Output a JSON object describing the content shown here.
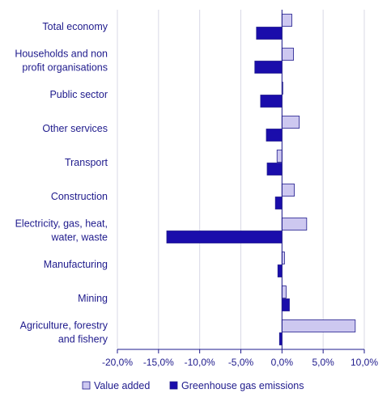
{
  "chart_data": {
    "type": "bar",
    "orientation": "horizontal",
    "categories": [
      "Total economy",
      "Households and non profit organisations",
      "Public sector",
      "Other services",
      "Transport",
      "Construction",
      "Electricity, gas, heat, water, waste",
      "Manufacturing",
      "Mining",
      "Agriculture, forestry and fishery"
    ],
    "category_lines": [
      [
        "Total economy"
      ],
      [
        "Households and non",
        "profit organisations"
      ],
      [
        "Public sector"
      ],
      [
        "Other services"
      ],
      [
        "Transport"
      ],
      [
        "Construction"
      ],
      [
        "Electricity, gas, heat,",
        "water, waste"
      ],
      [
        "Manufacturing"
      ],
      [
        "Mining"
      ],
      [
        "Agriculture, forestry",
        "and fishery"
      ]
    ],
    "series": [
      {
        "name": "Value added",
        "color": "#cdc8f0",
        "values": [
          1.2,
          1.4,
          0.1,
          2.1,
          -0.6,
          1.5,
          3.0,
          0.3,
          0.5,
          8.9
        ]
      },
      {
        "name": "Greenhouse gas emissions",
        "color": "#1a0dab",
        "values": [
          -3.1,
          -3.3,
          -2.6,
          -1.9,
          -1.8,
          -0.8,
          -14.0,
          -0.5,
          0.9,
          -0.3
        ]
      }
    ],
    "xlim": [
      -20,
      10
    ],
    "xticks": [
      -20,
      -15,
      -10,
      -5,
      0,
      5,
      10
    ],
    "xtick_labels": [
      "-20,0%",
      "-15,0%",
      "-10,0%",
      "-5,0%",
      "0,0%",
      "5,0%",
      "10,0%"
    ],
    "grid": "vertical",
    "legend": "bottom",
    "title": "",
    "xlabel": "",
    "ylabel": ""
  }
}
